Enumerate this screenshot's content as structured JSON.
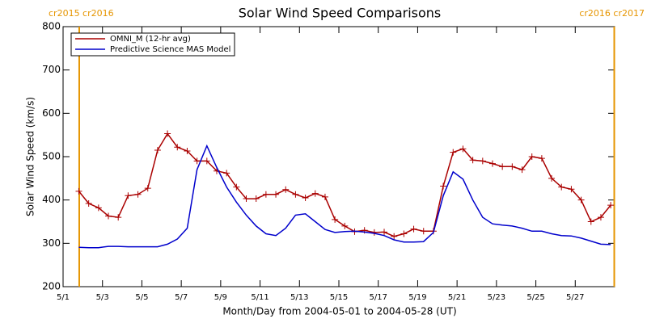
{
  "chart_data": {
    "type": "line",
    "title": "Solar Wind Speed Comparisons",
    "xlabel": "Month/Day from 2004-05-01 to 2004-05-28 (UT)",
    "ylabel": "Solar Wind Speed (km/s)",
    "x": [
      0.8,
      1.3,
      1.8,
      2.3,
      2.8,
      3.3,
      3.8,
      4.3,
      4.8,
      5.3,
      5.8,
      6.3,
      6.8,
      7.3,
      7.8,
      8.3,
      8.8,
      9.3,
      9.8,
      10.3,
      10.8,
      11.3,
      11.8,
      12.3,
      12.8,
      13.3,
      13.8,
      14.3,
      14.8,
      15.3,
      15.8,
      16.3,
      16.8,
      17.3,
      17.8,
      18.3,
      18.8,
      19.3,
      19.8,
      20.3,
      20.8,
      21.3,
      21.8,
      22.3,
      22.8,
      23.3,
      23.8,
      24.3,
      24.8,
      25.3,
      25.8,
      26.3,
      26.8,
      27.3,
      27.8
    ],
    "series": [
      {
        "name": "OMNI_M (12-hr avg)",
        "color": "#aa0000",
        "marker": "+",
        "values": [
          420,
          392,
          382,
          363,
          360,
          410,
          413,
          427,
          515,
          553,
          522,
          513,
          490,
          490,
          467,
          462,
          430,
          403,
          403,
          413,
          413,
          424,
          413,
          405,
          415,
          407,
          355,
          340,
          327,
          330,
          325,
          326,
          316,
          322,
          333,
          328,
          328,
          432,
          510,
          518,
          492,
          490,
          484,
          477,
          477,
          470,
          500,
          496,
          450,
          430,
          425,
          400,
          350,
          360,
          388
        ]
      },
      {
        "name": "Predictive Science MAS Model",
        "color": "#0000cc",
        "marker": "none",
        "values": [
          291,
          290,
          290,
          293,
          293,
          292,
          292,
          292,
          292,
          298,
          310,
          335,
          470,
          525,
          475,
          430,
          395,
          365,
          340,
          322,
          318,
          335,
          365,
          368,
          350,
          332,
          325,
          327,
          328,
          326,
          323,
          318,
          308,
          303,
          303,
          304,
          325,
          410,
          465,
          448,
          400,
          360,
          345,
          342,
          340,
          335,
          328,
          328,
          322,
          318,
          317,
          312,
          305,
          298,
          297
        ]
      }
    ],
    "xlim": [
      0,
      28
    ],
    "xticks": [
      {
        "value": 0,
        "label": "5/1"
      },
      {
        "value": 2,
        "label": "5/3"
      },
      {
        "value": 4,
        "label": "5/5"
      },
      {
        "value": 6,
        "label": "5/7"
      },
      {
        "value": 8,
        "label": "5/9"
      },
      {
        "value": 10,
        "label": "5/11"
      },
      {
        "value": 12,
        "label": "5/13"
      },
      {
        "value": 14,
        "label": "5/15"
      },
      {
        "value": 16,
        "label": "5/17"
      },
      {
        "value": 18,
        "label": "5/19"
      },
      {
        "value": 20,
        "label": "5/21"
      },
      {
        "value": 22,
        "label": "5/23"
      },
      {
        "value": 24,
        "label": "5/25"
      },
      {
        "value": 26,
        "label": "5/27"
      }
    ],
    "ylim": [
      200,
      800
    ],
    "yticks": [
      200,
      300,
      400,
      500,
      600,
      700,
      800
    ],
    "vlines": [
      {
        "x": 0.82,
        "label": "cr2015 cr2016",
        "color": "#e69500"
      },
      {
        "x": 27.98,
        "label": "cr2016 cr2017",
        "color": "#e69500"
      }
    ],
    "legend": "top-left"
  }
}
